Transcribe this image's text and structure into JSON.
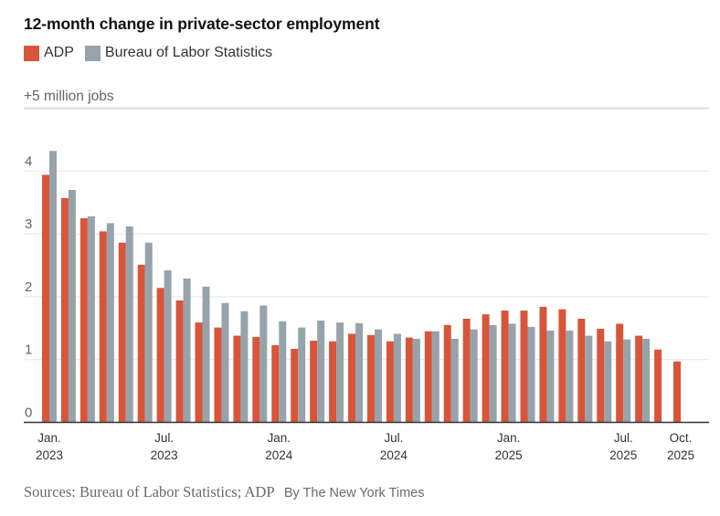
{
  "chart_data": {
    "type": "bar",
    "title": "12-month change in private-sector employment",
    "xlabel": "",
    "ylabel": "+5 million jobs",
    "ylim": [
      0,
      5
    ],
    "yticks": [
      0,
      1,
      2,
      3,
      4,
      5
    ],
    "ytick_labels": [
      "0",
      "1",
      "2",
      "3",
      "4",
      "+5 million jobs"
    ],
    "grid": true,
    "legend_position": "top-left",
    "categories": [
      "Jan. 2023",
      "Feb. 2023",
      "Mar. 2023",
      "Apr. 2023",
      "May 2023",
      "Jun. 2023",
      "Jul. 2023",
      "Aug. 2023",
      "Sep. 2023",
      "Oct. 2023",
      "Nov. 2023",
      "Dec. 2023",
      "Jan. 2024",
      "Feb. 2024",
      "Mar. 2024",
      "Apr. 2024",
      "May 2024",
      "Jun. 2024",
      "Jul. 2024",
      "Aug. 2024",
      "Sep. 2024",
      "Oct. 2024",
      "Nov. 2024",
      "Dec. 2024",
      "Jan. 2025",
      "Feb. 2025",
      "Mar. 2025",
      "Apr. 2025",
      "May 2025",
      "Jun. 2025",
      "Jul. 2025",
      "Aug. 2025",
      "Sep. 2025",
      "Oct. 2025"
    ],
    "xtick_labels": [
      {
        "index": 0,
        "line1": "Jan.",
        "line2": "2023"
      },
      {
        "index": 6,
        "line1": "Jul.",
        "line2": "2023"
      },
      {
        "index": 12,
        "line1": "Jan.",
        "line2": "2024"
      },
      {
        "index": 18,
        "line1": "Jul.",
        "line2": "2024"
      },
      {
        "index": 24,
        "line1": "Jan.",
        "line2": "2025"
      },
      {
        "index": 30,
        "line1": "Jul.",
        "line2": "2025"
      },
      {
        "index": 33,
        "line1": "Oct.",
        "line2": "2025"
      }
    ],
    "series": [
      {
        "name": "ADP",
        "color": "#d8553a",
        "values": [
          3.94,
          3.57,
          3.25,
          3.04,
          2.86,
          2.51,
          2.14,
          1.94,
          1.59,
          1.51,
          1.38,
          1.36,
          1.23,
          1.17,
          1.3,
          1.29,
          1.41,
          1.39,
          1.29,
          1.35,
          1.45,
          1.55,
          1.65,
          1.72,
          1.78,
          1.78,
          1.84,
          1.8,
          1.65,
          1.49,
          1.57,
          1.38,
          1.16,
          0.97
        ]
      },
      {
        "name": "Bureau of Labor Statistics",
        "color": "#97a3ab",
        "values": [
          4.32,
          3.7,
          3.28,
          3.17,
          3.12,
          2.86,
          2.42,
          2.29,
          2.16,
          1.9,
          1.77,
          1.86,
          1.61,
          1.51,
          1.62,
          1.59,
          1.58,
          1.48,
          1.41,
          1.33,
          1.45,
          1.33,
          1.48,
          1.55,
          1.57,
          1.52,
          1.46,
          1.46,
          1.38,
          1.29,
          1.32,
          1.33,
          null,
          null
        ]
      }
    ]
  },
  "legend": {
    "items": [
      {
        "label": "ADP",
        "color": "#d8553a"
      },
      {
        "label": "Bureau of Labor Statistics",
        "color": "#97a3ab"
      }
    ]
  },
  "footer": {
    "sources": "Sources: Bureau of Labor Statistics; ADP",
    "credit": "By The New York Times"
  }
}
